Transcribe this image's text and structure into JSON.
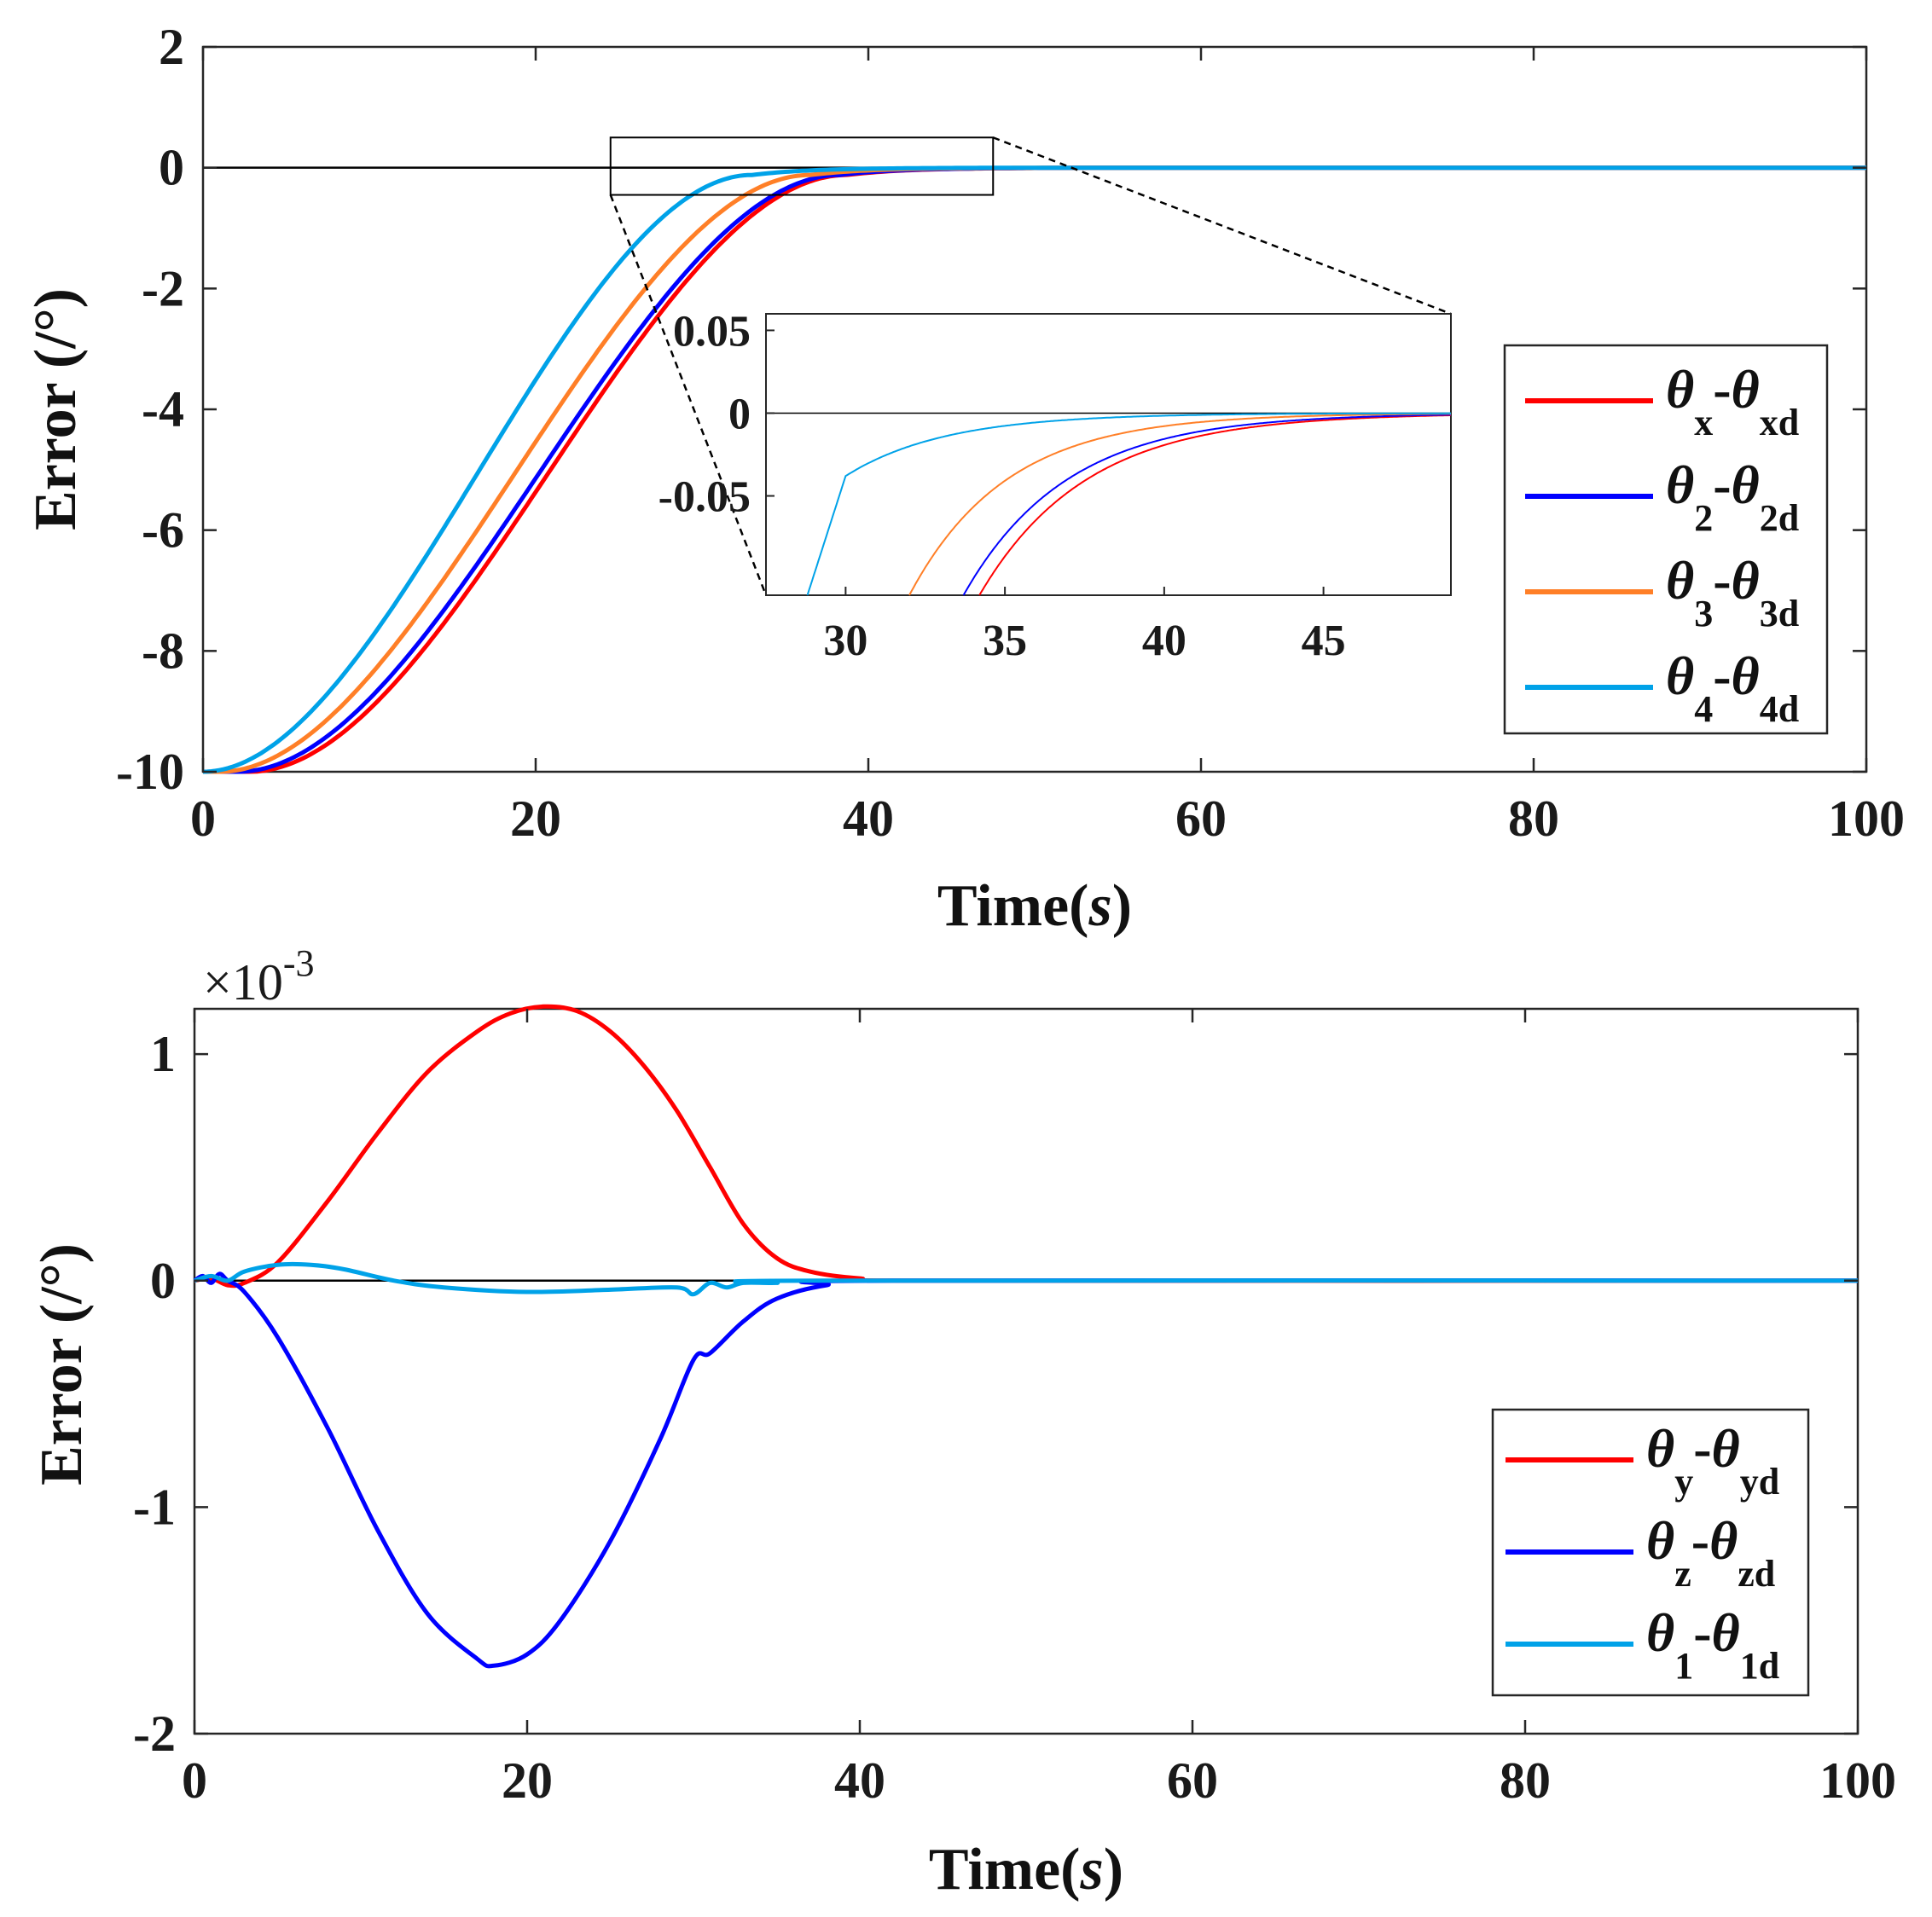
{
  "chart_data": [
    {
      "type": "line",
      "xlabel": "Time(",
      "xlabel_unit": "s",
      "xlabel_close": ")",
      "ylabel": "Error (/°)",
      "xlim": [
        0,
        100
      ],
      "ylim": [
        -10,
        2
      ],
      "xticks": [
        0,
        20,
        40,
        60,
        80,
        100
      ],
      "yticks": [
        2,
        0,
        -2,
        -4,
        -6,
        -8,
        -10
      ],
      "legend_position": "right",
      "series": [
        {
          "name": "θx-θxd",
          "base": "θ",
          "sub1": "x",
          "dash": "-θ",
          "sub2": "xd",
          "color": "#ff0000",
          "delay": 2.8,
          "t_end": 38.7,
          "v0": -10
        },
        {
          "name": "θ2-θ2d",
          "base": "θ",
          "sub1": "2",
          "dash": "-θ",
          "sub2": "2d",
          "color": "#0000ff",
          "delay": 2.1,
          "t_end": 38.3,
          "v0": -10
        },
        {
          "name": "θ3-θ3d",
          "base": "θ",
          "sub1": "3",
          "dash": "-θ",
          "sub2": "3d",
          "color": "#ff7f27",
          "delay": 1.0,
          "t_end": 36.5,
          "v0": -10
        },
        {
          "name": "θ4-θ4d",
          "base": "θ",
          "sub1": "4",
          "dash": "-θ",
          "sub2": "4d",
          "color": "#00a2e8",
          "delay": 0.0,
          "t_end": 33.0,
          "v0": -10
        }
      ],
      "zoom_box": {
        "x": [
          24.5,
          47.5
        ],
        "y": [
          -0.45,
          0.5
        ]
      },
      "inset": {
        "xlim": [
          27.5,
          49
        ],
        "ylim": [
          -0.11,
          0.06
        ],
        "xticks": [
          30,
          35,
          40,
          45
        ],
        "yticks": [
          0.05,
          0,
          -0.05
        ],
        "ytick_labels": [
          "0.05",
          "0",
          "-0.05"
        ]
      }
    },
    {
      "type": "line",
      "xlabel": "Time(",
      "xlabel_unit": "s",
      "xlabel_close": ")",
      "ylabel": "Error (/°)",
      "exponent_label": "×10",
      "exponent_power": "-3",
      "xlim": [
        0,
        100
      ],
      "ylim": [
        -2,
        1.2
      ],
      "xticks": [
        0,
        20,
        40,
        60,
        80,
        100
      ],
      "yticks": [
        1,
        0,
        -1,
        -2
      ],
      "legend_position": "lower-right",
      "series": [
        {
          "name": "θy-θyd",
          "base": "θ",
          "sub1": "y",
          "dash": "-θ",
          "sub2": "yd",
          "color": "#ff0000",
          "points": [
            [
              0,
              0
            ],
            [
              1,
              0.01
            ],
            [
              2,
              -0.02
            ],
            [
              3,
              -0.01
            ],
            [
              5,
              0.08
            ],
            [
              8,
              0.35
            ],
            [
              11,
              0.65
            ],
            [
              14,
              0.92
            ],
            [
              17,
              1.1
            ],
            [
              19,
              1.18
            ],
            [
              21,
              1.21
            ],
            [
              23,
              1.19
            ],
            [
              25,
              1.1
            ],
            [
              27,
              0.95
            ],
            [
              29,
              0.75
            ],
            [
              31,
              0.5
            ],
            [
              33,
              0.25
            ],
            [
              35,
              0.1
            ],
            [
              37,
              0.04
            ],
            [
              40,
              0.01
            ],
            [
              45,
              0.0
            ],
            [
              100,
              0
            ]
          ]
        },
        {
          "name": "θz-θzd",
          "base": "θ",
          "sub1": "z",
          "dash": "-θ",
          "sub2": "zd",
          "color": "#0000ff",
          "points": [
            [
              0,
              0
            ],
            [
              0.5,
              0.02
            ],
            [
              1,
              -0.01
            ],
            [
              1.5,
              0.03
            ],
            [
              2,
              0
            ],
            [
              3,
              -0.05
            ],
            [
              5,
              -0.25
            ],
            [
              8,
              -0.65
            ],
            [
              11,
              -1.1
            ],
            [
              14,
              -1.47
            ],
            [
              17,
              -1.67
            ],
            [
              18,
              -1.7
            ],
            [
              20,
              -1.65
            ],
            [
              22,
              -1.5
            ],
            [
              25,
              -1.15
            ],
            [
              28,
              -0.7
            ],
            [
              30,
              -0.35
            ],
            [
              31,
              -0.32
            ],
            [
              33,
              -0.18
            ],
            [
              35,
              -0.08
            ],
            [
              38,
              -0.02
            ],
            [
              42,
              0
            ],
            [
              100,
              0
            ]
          ]
        },
        {
          "name": "θ1-θ1d",
          "base": "θ",
          "sub1": "1",
          "dash": "-θ",
          "sub2": "1d",
          "color": "#00a2e8",
          "points": [
            [
              0,
              0
            ],
            [
              1,
              0.02
            ],
            [
              2,
              0.0
            ],
            [
              3,
              0.04
            ],
            [
              5,
              0.07
            ],
            [
              7,
              0.07
            ],
            [
              9,
              0.05
            ],
            [
              12,
              0.0
            ],
            [
              15,
              -0.03
            ],
            [
              20,
              -0.05
            ],
            [
              25,
              -0.04
            ],
            [
              29,
              -0.03
            ],
            [
              30,
              -0.06
            ],
            [
              31,
              -0.01
            ],
            [
              32,
              -0.03
            ],
            [
              33,
              -0.01
            ],
            [
              35,
              -0.01
            ],
            [
              38,
              0
            ],
            [
              100,
              0
            ]
          ]
        }
      ]
    }
  ]
}
